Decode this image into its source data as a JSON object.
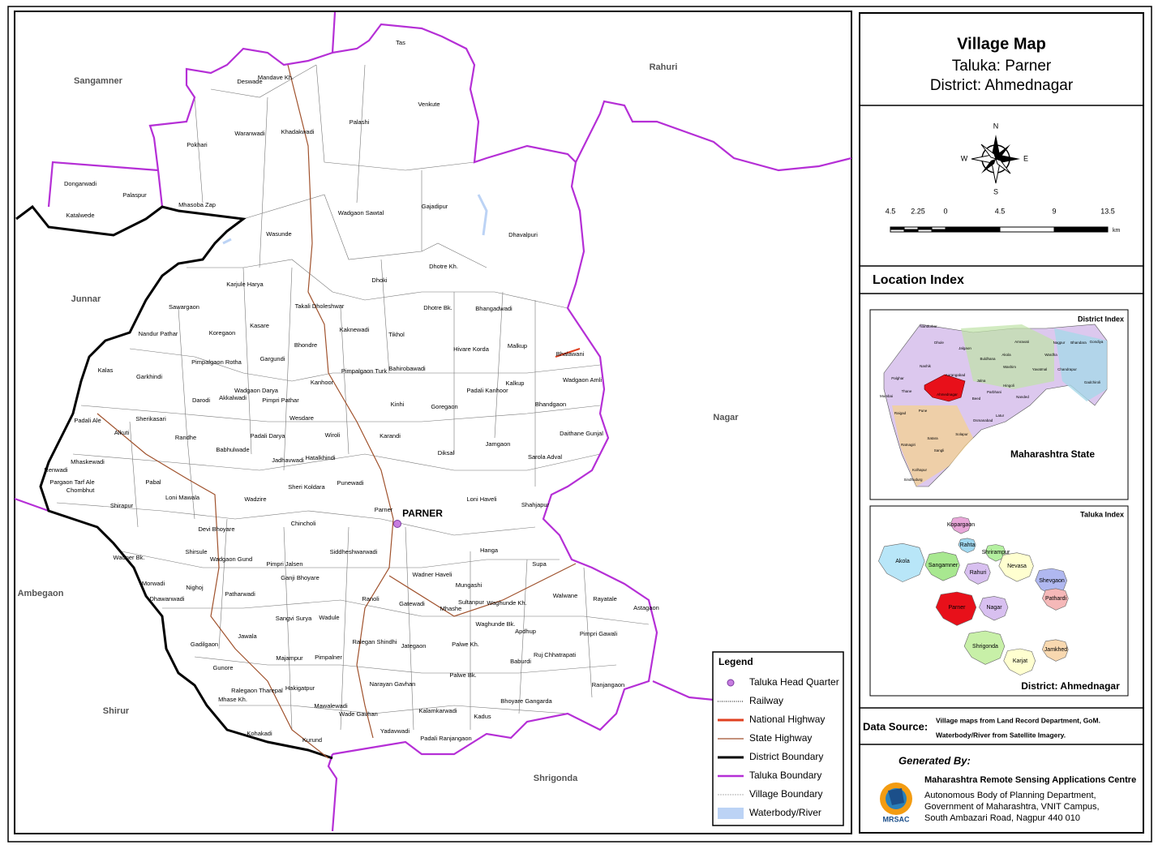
{
  "header": {
    "title": "Village Map",
    "taluka": "Taluka: Parner",
    "district": "District: Ahmednagar"
  },
  "compass": {
    "n": "N",
    "s": "S",
    "e": "E",
    "w": "W"
  },
  "scale_bar": {
    "ticks": [
      "4.5",
      "2.25",
      "0",
      "4.5",
      "9",
      "13.5"
    ],
    "unit": "km"
  },
  "location_index": {
    "title": "Location Index",
    "district_index": {
      "title": "District Index",
      "state": "Maharashtra State",
      "districts": [
        "Palghar",
        "Nashik",
        "Dhule",
        "Nandurbar",
        "Jalgaon",
        "Buldhana",
        "Akola",
        "Amravati",
        "Nagpur",
        "Wardha",
        "Bhandara",
        "Gondiya",
        "Gadchiroli",
        "Chandrapur",
        "Yavatmal",
        "Washim",
        "Hingoli",
        "Nanded",
        "Parbhani",
        "Jalna",
        "Aurangabad",
        "Thane",
        "Mumbai",
        "Raigad",
        "Pune",
        "Ahmednagar",
        "Beed",
        "Latur",
        "Osmanabad",
        "Solapur",
        "Satara",
        "Ratnagiri",
        "Sangli",
        "Kolhapur",
        "Sindhudurg"
      ]
    },
    "taluka_index": {
      "title": "Taluka Index",
      "district": "District: Ahmednagar",
      "talukas": [
        "Kopargaon",
        "Rahta",
        "Shrirampur",
        "Akola",
        "Sangamner",
        "Nevasa",
        "Rahuri",
        "Shevgaon",
        "Pathardi",
        "Parner",
        "Nagar",
        "Shrigonda",
        "Karjat",
        "Jamkhed"
      ]
    }
  },
  "map": {
    "headquarter": "PARNER",
    "neighbors": [
      "Sangamner",
      "Rahuri",
      "Junnar",
      "Nagar",
      "Ambegaon",
      "Shirur",
      "Shrigonda"
    ],
    "villages": [
      "Tas",
      "Deswade",
      "Mandave Kh.",
      "Venkute",
      "Palashi",
      "Khadakwadi",
      "Waranwadi",
      "Pokhari",
      "Dongarwadi",
      "Palaspur",
      "Katalwede",
      "Mhasoba Zap",
      "Wadgaon Sawtal",
      "Gajadipur",
      "Wasunde",
      "Dhavalpuri",
      "Dhotre Kh.",
      "Dhoki",
      "Karjule Harya",
      "Sawargaon",
      "Takali Dholeshwar",
      "Bhangadwadi",
      "Dhotre Bk.",
      "Kasare",
      "Kaknewadi",
      "Koregaon",
      "Nandur Pathar",
      "Tikhol",
      "Bhondre",
      "Hivare Korda",
      "Malkup",
      "Bhalawani",
      "Gargundi",
      "Pimpalgaon Rotha",
      "Pimpalgaon Turk",
      "Bahirobawadi",
      "Kalas",
      "Garkhindi",
      "Kanhoor",
      "Wadgaon Amli",
      "Kalkup",
      "Wadgaon Darya",
      "Padali Kanhoor",
      "Akkalwadi",
      "Pimpri Pathar",
      "Darodi",
      "Kinhi",
      "Goregaon",
      "Bhandgaon",
      "Wesdare",
      "Sherikasari",
      "Padali Ale",
      "Alkuti",
      "Randhe",
      "Padali Darya",
      "Wiroli",
      "Karandi",
      "Daithane Gunjal",
      "Babhulwade",
      "Hatalkhindi",
      "Jadhavwadi",
      "Diksal",
      "Jamgaon",
      "Mhaskewadi",
      "Sarola Adval",
      "Renwadi",
      "Pabal",
      "Punewadi",
      "Pargaon Tarf Ale",
      "Chombhut",
      "Sheri Koldara",
      "Shirapur",
      "Loni Mawala",
      "Wadzire",
      "Loni Haveli",
      "Shahjapur",
      "Parner",
      "Chincholi",
      "Devi Bhoyare",
      "Hanga",
      "Siddheshwarwadi",
      "Shirsule",
      "Wadgaon Gund",
      "Wadner Bk.",
      "Pimpri Jalsen",
      "Supa",
      "Ganji Bhoyare",
      "Wadner Haveli",
      "Morwadi",
      "Nighoj",
      "Mungashi",
      "Dhawanwadi",
      "Patharwadi",
      "Walwane",
      "Rayatale",
      "Astagaon",
      "Ranoli",
      "Gatewadi",
      "Sultanpur",
      "Waghunde Kh.",
      "Mhashe",
      "Sangvi Surya",
      "Wadule",
      "Waghunde Bk.",
      "Apdhup",
      "Jawala",
      "Pimpri Gawali",
      "Ralegan Shindhi",
      "Jategaon",
      "Gadilgaon",
      "Palwe Kh.",
      "Majampur",
      "Pimpalner",
      "Ruj Chhatrapati",
      "Baburdi",
      "Gunore",
      "Palwe Bk.",
      "Narayan Gavhan",
      "Ranjangaon",
      "Hakigatpur",
      "Ralegaon Tharepal",
      "Mhase Kh.",
      "Bhoyare Gangarda",
      "Mawalewadi",
      "Kalamkarwadi",
      "Wade Gavhan",
      "Kadus",
      "Kohakadi",
      "Yadavwadi",
      "Kurund",
      "Padali Ranjangaon"
    ]
  },
  "legend": {
    "title": "Legend",
    "items": [
      "Taluka Head Quarter",
      "Railway",
      "National Highway",
      "State Highway",
      "District Boundary",
      "Taluka Boundary",
      "Village Boundary",
      "Waterbody/River"
    ]
  },
  "data_source": {
    "label": "Data Source:",
    "lines": [
      "Village maps from Land Record Department, GoM.",
      "Waterbody/River from Satellite Imagery."
    ]
  },
  "credits": {
    "generated_by": "Generated By:",
    "logo": "MRSAC",
    "org": "Maharashtra Remote Sensing Applications Centre",
    "address": [
      "Autonomous Body of Planning Department,",
      "Government of Maharashtra, VNIT Campus,",
      "South Ambazari Road, Nagpur 440 010"
    ]
  }
}
